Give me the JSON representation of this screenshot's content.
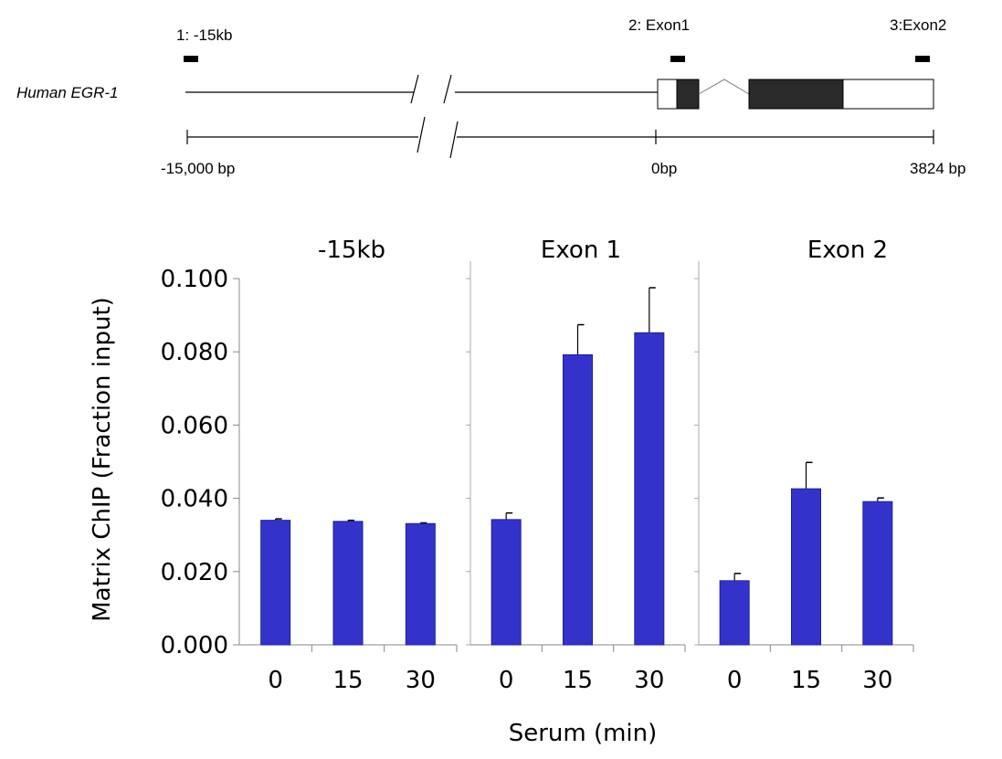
{
  "gene_map": {
    "gene_name": "Human EGR-1",
    "probe_labels": [
      "1: -15kb",
      "2: Exon1",
      "3:Exon2"
    ],
    "scale_labels": [
      "-15,000  bp",
      "0bp",
      "3824 bp"
    ]
  },
  "chart_data": {
    "type": "bar",
    "ylabel": "Matrix ChIP (Fraction input)",
    "xlabel": "Serum (min)",
    "ylim": [
      0,
      0.1
    ],
    "yticks": [
      "0.000",
      "0.020",
      "0.040",
      "0.060",
      "0.080",
      "0.100"
    ],
    "categories": [
      "0",
      "15",
      "30"
    ],
    "bar_color": "#3333cc",
    "panels": [
      {
        "title": "-15kb",
        "values": [
          0.034,
          0.0337,
          0.0331
        ],
        "errors": [
          0.0004,
          0.0003,
          0.0002
        ]
      },
      {
        "title": "Exon 1",
        "values": [
          0.0342,
          0.0792,
          0.0852
        ],
        "errors": [
          0.0018,
          0.0082,
          0.0123
        ]
      },
      {
        "title": "Exon 2",
        "values": [
          0.0175,
          0.0426,
          0.0391
        ],
        "errors": [
          0.002,
          0.0072,
          0.001
        ]
      }
    ]
  }
}
